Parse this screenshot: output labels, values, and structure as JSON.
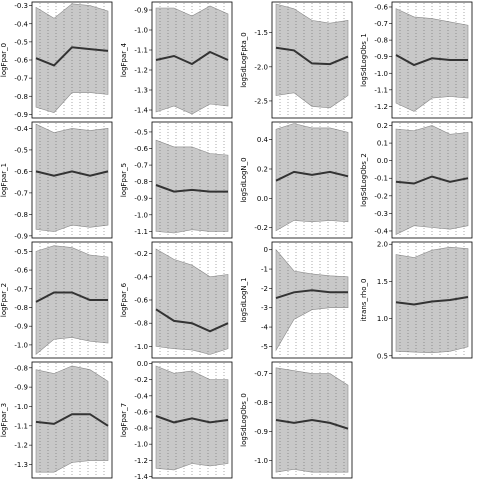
{
  "chart_data": [
    {
      "type": "line",
      "ylabel": "logFpar_0",
      "ylim": [
        -0.92,
        -0.28
      ],
      "yticks": [
        -0.3,
        -0.4,
        -0.5,
        -0.6,
        -0.7,
        -0.8,
        -0.9
      ],
      "yticklabels": [
        "-0.3",
        "-0.4",
        "-0.5",
        "-0.6",
        "-0.7",
        "-0.8",
        "-0.9"
      ],
      "x": [
        1,
        2,
        3,
        4,
        5
      ],
      "mean": [
        -0.59,
        -0.63,
        -0.53,
        -0.54,
        -0.55
      ],
      "lower": [
        -0.86,
        -0.89,
        -0.78,
        -0.78,
        -0.79
      ],
      "upper": [
        -0.31,
        -0.37,
        -0.29,
        -0.3,
        -0.33
      ]
    },
    {
      "type": "line",
      "ylabel": "logFpar_4",
      "ylim": [
        -1.44,
        -0.86
      ],
      "yticks": [
        -0.9,
        -1.0,
        -1.1,
        -1.2,
        -1.3,
        -1.4
      ],
      "yticklabels": [
        "-0.9",
        "-1.0",
        "-1.1",
        "-1.2",
        "-1.3",
        "-1.4"
      ],
      "x": [
        1,
        2,
        3,
        4,
        5
      ],
      "mean": [
        -1.15,
        -1.13,
        -1.17,
        -1.11,
        -1.15
      ],
      "lower": [
        -1.41,
        -1.38,
        -1.42,
        -1.37,
        -1.38
      ],
      "upper": [
        -0.89,
        -0.89,
        -0.93,
        -0.88,
        -0.92
      ]
    },
    {
      "type": "line",
      "ylabel": "logSdLogFpta_0",
      "ylim": [
        -2.75,
        -1.05
      ],
      "yticks": [
        -1.5,
        -2.0,
        -2.5
      ],
      "yticklabels": [
        "-1.5",
        "-2.0",
        "-2.5"
      ],
      "x": [
        1,
        2,
        3,
        4,
        5
      ],
      "mean": [
        -1.72,
        -1.76,
        -1.95,
        -1.96,
        -1.85
      ],
      "lower": [
        -2.42,
        -2.38,
        -2.58,
        -2.6,
        -2.42
      ],
      "upper": [
        -1.08,
        -1.15,
        -1.32,
        -1.36,
        -1.32
      ]
    },
    {
      "type": "line",
      "ylabel": "logSdLogObs_1",
      "ylim": [
        -1.27,
        -0.57
      ],
      "yticks": [
        -0.6,
        -0.7,
        -0.8,
        -0.9,
        -1.0,
        -1.1,
        -1.2
      ],
      "yticklabels": [
        "-0.6",
        "-0.7",
        "-0.8",
        "-0.9",
        "-1.0",
        "-1.1",
        "-1.2"
      ],
      "x": [
        1,
        2,
        3,
        4,
        5
      ],
      "mean": [
        -0.89,
        -0.95,
        -0.91,
        -0.92,
        -0.92
      ],
      "lower": [
        -1.18,
        -1.23,
        -1.15,
        -1.14,
        -1.15
      ],
      "upper": [
        -0.61,
        -0.66,
        -0.67,
        -0.69,
        -0.71
      ]
    },
    {
      "type": "line",
      "ylabel": "logFpar_1",
      "ylim": [
        -0.91,
        -0.37
      ],
      "yticks": [
        -0.4,
        -0.5,
        -0.6,
        -0.7,
        -0.8,
        -0.9
      ],
      "yticklabels": [
        "-0.4",
        "-0.5",
        "-0.6",
        "-0.7",
        "-0.8",
        "-0.9"
      ],
      "x": [
        1,
        2,
        3,
        4,
        5
      ],
      "mean": [
        -0.6,
        -0.62,
        -0.6,
        -0.62,
        -0.6
      ],
      "lower": [
        -0.87,
        -0.88,
        -0.85,
        -0.86,
        -0.85
      ],
      "upper": [
        -0.38,
        -0.42,
        -0.4,
        -0.41,
        -0.4
      ]
    },
    {
      "type": "line",
      "ylabel": "logFpar_5",
      "ylim": [
        -1.14,
        -0.44
      ],
      "yticks": [
        -0.5,
        -0.6,
        -0.7,
        -0.8,
        -0.9,
        -1.0,
        -1.1
      ],
      "yticklabels": [
        "-0.5",
        "-0.6",
        "-0.7",
        "-0.8",
        "-0.9",
        "-1.0",
        "-1.1"
      ],
      "x": [
        1,
        2,
        3,
        4,
        5
      ],
      "mean": [
        -0.82,
        -0.86,
        -0.85,
        -0.86,
        -0.86
      ],
      "lower": [
        -1.1,
        -1.11,
        -1.09,
        -1.1,
        -1.1
      ],
      "upper": [
        -0.55,
        -0.59,
        -0.59,
        -0.63,
        -0.64
      ]
    },
    {
      "type": "line",
      "ylabel": "logSdLogN_0",
      "ylim": [
        -0.27,
        0.52
      ],
      "yticks": [
        0.4,
        0.2,
        0.0,
        -0.2
      ],
      "yticklabels": [
        "0.4",
        "0.2",
        "0.0",
        "-0.2"
      ],
      "x": [
        1,
        2,
        3,
        4,
        5
      ],
      "mean": [
        0.12,
        0.18,
        0.16,
        0.18,
        0.15
      ],
      "lower": [
        -0.22,
        -0.15,
        -0.16,
        -0.15,
        -0.16
      ],
      "upper": [
        0.47,
        0.51,
        0.48,
        0.48,
        0.45
      ]
    },
    {
      "type": "line",
      "ylabel": "logSdLogObs_2",
      "ylim": [
        -0.44,
        0.22
      ],
      "yticks": [
        0.2,
        0.1,
        0.0,
        -0.1,
        -0.2,
        -0.3,
        -0.4
      ],
      "yticklabels": [
        "0.2",
        "0.1",
        "0.0",
        "-0.1",
        "-0.2",
        "-0.3",
        "-0.4"
      ],
      "x": [
        1,
        2,
        3,
        4,
        5
      ],
      "mean": [
        -0.12,
        -0.13,
        -0.09,
        -0.12,
        -0.1
      ],
      "lower": [
        -0.42,
        -0.37,
        -0.38,
        -0.39,
        -0.37
      ],
      "upper": [
        0.18,
        0.17,
        0.2,
        0.15,
        0.16
      ]
    },
    {
      "type": "line",
      "ylabel": "logFpar_2",
      "ylim": [
        -1.07,
        -0.45
      ],
      "yticks": [
        -0.5,
        -0.6,
        -0.7,
        -0.8,
        -0.9,
        -1.0
      ],
      "yticklabels": [
        "-0.5",
        "-0.6",
        "-0.7",
        "-0.8",
        "-0.9",
        "-1.0"
      ],
      "x": [
        1,
        2,
        3,
        4,
        5
      ],
      "mean": [
        -0.77,
        -0.72,
        -0.72,
        -0.76,
        -0.76
      ],
      "lower": [
        -1.05,
        -0.97,
        -0.96,
        -0.98,
        -0.99
      ],
      "upper": [
        -0.5,
        -0.47,
        -0.48,
        -0.52,
        -0.53
      ]
    },
    {
      "type": "line",
      "ylabel": "logFpar_6",
      "ylim": [
        -1.1,
        -0.1
      ],
      "yticks": [
        -0.2,
        -0.4,
        -0.6,
        -0.8,
        -1.0
      ],
      "yticklabels": [
        "-0.2",
        "-0.4",
        "-0.6",
        "-0.8",
        "-1.0"
      ],
      "x": [
        1,
        2,
        3,
        4,
        5
      ],
      "mean": [
        -0.68,
        -0.78,
        -0.8,
        -0.87,
        -0.8
      ],
      "lower": [
        -1.0,
        -1.02,
        -1.03,
        -1.07,
        -1.02
      ],
      "upper": [
        -0.16,
        -0.25,
        -0.3,
        -0.4,
        -0.38
      ]
    },
    {
      "type": "line",
      "ylabel": "logSdLogN_1",
      "ylim": [
        -5.6,
        0.4
      ],
      "yticks": [
        0,
        -1,
        -2,
        -3,
        -4,
        -5
      ],
      "yticklabels": [
        "0",
        "-1",
        "-2",
        "-3",
        "-4",
        "-5"
      ],
      "x": [
        1,
        2,
        3,
        4,
        5
      ],
      "mean": [
        -2.5,
        -2.2,
        -2.1,
        -2.2,
        -2.2
      ],
      "lower": [
        -5.2,
        -3.6,
        -3.1,
        -3.0,
        -3.0
      ],
      "upper": [
        0.0,
        -1.1,
        -1.25,
        -1.35,
        -1.4
      ]
    },
    {
      "type": "line",
      "ylabel": "itrans_rho_0",
      "ylim": [
        0.47,
        2.03
      ],
      "yticks": [
        2.0,
        1.5,
        1.0,
        0.5
      ],
      "yticklabels": [
        "2.0",
        "1.5",
        "1.0",
        "0.5"
      ],
      "x": [
        1,
        2,
        3,
        4,
        5
      ],
      "mean": [
        1.22,
        1.19,
        1.23,
        1.25,
        1.29
      ],
      "lower": [
        0.56,
        0.55,
        0.54,
        0.56,
        0.62
      ],
      "upper": [
        1.86,
        1.82,
        1.92,
        1.96,
        1.94
      ]
    },
    {
      "type": "line",
      "ylabel": "logFpar_3",
      "ylim": [
        -1.37,
        -0.77
      ],
      "yticks": [
        -0.8,
        -0.9,
        -1.0,
        -1.1,
        -1.2,
        -1.3
      ],
      "yticklabels": [
        "-0.8",
        "-0.9",
        "-1.0",
        "-1.1",
        "-1.2",
        "-1.3"
      ],
      "x": [
        1,
        2,
        3,
        4,
        5
      ],
      "mean": [
        -1.08,
        -1.09,
        -1.04,
        -1.04,
        -1.1
      ],
      "lower": [
        -1.34,
        -1.34,
        -1.29,
        -1.28,
        -1.28
      ],
      "upper": [
        -0.81,
        -0.83,
        -0.79,
        -0.81,
        -0.87
      ]
    },
    {
      "type": "line",
      "ylabel": "logFpar_7",
      "ylim": [
        -1.42,
        0.02
      ],
      "yticks": [
        0.0,
        -0.2,
        -0.4,
        -0.6,
        -0.8,
        -1.0,
        -1.2,
        -1.4
      ],
      "yticklabels": [
        "0.0",
        "-0.2",
        "-0.4",
        "-0.6",
        "-0.8",
        "-1.0",
        "-1.2",
        "-1.4"
      ],
      "x": [
        1,
        2,
        3,
        4,
        5
      ],
      "mean": [
        -0.65,
        -0.73,
        -0.68,
        -0.73,
        -0.7
      ],
      "lower": [
        -1.3,
        -1.32,
        -1.24,
        -1.27,
        -1.24
      ],
      "upper": [
        -0.03,
        -0.12,
        -0.09,
        -0.2,
        -0.2
      ]
    },
    {
      "type": "line",
      "ylabel": "logSdLogObs_0",
      "ylim": [
        -1.06,
        -0.66
      ],
      "yticks": [
        -0.7,
        -0.8,
        -0.9,
        -1.0
      ],
      "yticklabels": [
        "-0.7",
        "-0.8",
        "-0.9",
        "-1.0"
      ],
      "x": [
        1,
        2,
        3,
        4,
        5
      ],
      "mean": [
        -0.86,
        -0.87,
        -0.86,
        -0.87,
        -0.89
      ],
      "lower": [
        -1.04,
        -1.03,
        -1.04,
        -1.04,
        -1.04
      ],
      "upper": [
        -0.68,
        -0.69,
        -0.7,
        -0.7,
        -0.74
      ]
    }
  ]
}
